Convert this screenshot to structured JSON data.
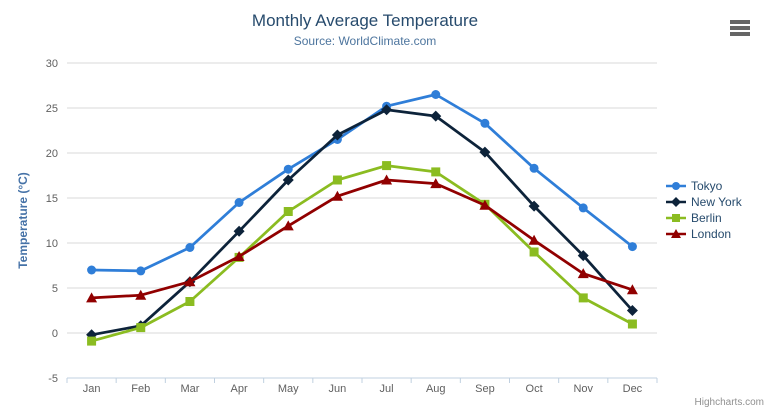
{
  "header": {
    "title": "Monthly Average Temperature",
    "subtitle": "Source: WorldClimate.com"
  },
  "toolbar": {
    "context_menu_icon": "hamburger-icon"
  },
  "credits": {
    "label": "Highcharts.com"
  },
  "chart_data": {
    "type": "line",
    "title": "Monthly Average Temperature",
    "subtitle": "Source: WorldClimate.com",
    "xlabel": "",
    "ylabel": "Temperature (°C)",
    "ylim": [
      -5,
      30
    ],
    "ytick_step": 5,
    "grid": true,
    "legend_position": "right-middle",
    "categories": [
      "Jan",
      "Feb",
      "Mar",
      "Apr",
      "May",
      "Jun",
      "Jul",
      "Aug",
      "Sep",
      "Oct",
      "Nov",
      "Dec"
    ],
    "series": [
      {
        "name": "Tokyo",
        "color": "#2f7ed8",
        "marker": "circle",
        "values": [
          7.0,
          6.9,
          9.5,
          14.5,
          18.2,
          21.5,
          25.2,
          26.5,
          23.3,
          18.3,
          13.9,
          9.6
        ]
      },
      {
        "name": "New York",
        "color": "#0d233a",
        "marker": "diamond",
        "values": [
          -0.2,
          0.8,
          5.7,
          11.3,
          17.0,
          22.0,
          24.8,
          24.1,
          20.1,
          14.1,
          8.6,
          2.5
        ]
      },
      {
        "name": "Berlin",
        "color": "#8bbc21",
        "marker": "square",
        "values": [
          -0.9,
          0.6,
          3.5,
          8.4,
          13.5,
          17.0,
          18.6,
          17.9,
          14.3,
          9.0,
          3.9,
          1.0
        ]
      },
      {
        "name": "London",
        "color": "#910000",
        "marker": "triangle",
        "values": [
          3.9,
          4.2,
          5.7,
          8.5,
          11.9,
          15.2,
          17.0,
          16.6,
          14.2,
          10.3,
          6.6,
          4.8
        ]
      }
    ]
  },
  "colors": {
    "background": "#ffffff",
    "grid": "#d8d8d8",
    "axis_line": "#c0d0e0",
    "tick": "#c0d0e0",
    "axis_label": "#606060",
    "y_axis_title": "#4572a7",
    "title": "#274b6d",
    "subtitle": "#4d759e",
    "legend_text": "#274b6d",
    "credits": "#909090",
    "menu_icon": "#666666"
  }
}
